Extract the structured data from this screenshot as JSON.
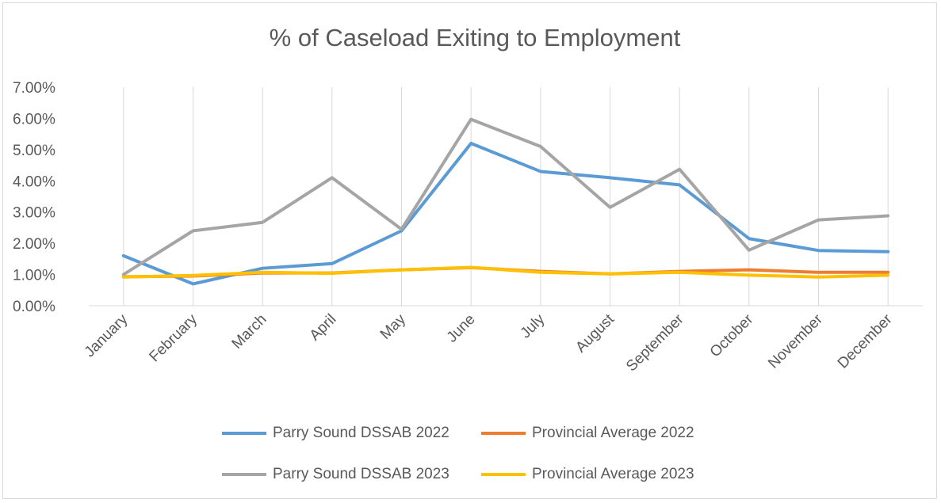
{
  "chart_data": {
    "type": "line",
    "title": "% of Caseload  Exiting to Employment",
    "xlabel": "",
    "ylabel": "",
    "ylim": [
      0,
      0.07
    ],
    "yticks": [
      "0.00%",
      "1.00%",
      "2.00%",
      "3.00%",
      "4.00%",
      "5.00%",
      "6.00%",
      "7.00%"
    ],
    "grid": "vertical",
    "legend_position": "bottom",
    "categories": [
      "January",
      "February",
      "March",
      "April",
      "May",
      "June",
      "July",
      "August",
      "September",
      "October",
      "November",
      "December"
    ],
    "series": [
      {
        "name": "Parry Sound DSSAB 2022",
        "color": "#5b9bd5",
        "values": [
          0.016,
          0.007,
          0.012,
          0.0135,
          0.024,
          0.052,
          0.043,
          0.041,
          0.0387,
          0.0215,
          0.0177,
          0.0173
        ]
      },
      {
        "name": "Provincial Average 2022",
        "color": "#ed7d31",
        "values": [
          0.0093,
          0.0095,
          0.0105,
          0.0105,
          0.0115,
          0.0122,
          0.011,
          0.0102,
          0.011,
          0.0115,
          0.0107,
          0.0107
        ]
      },
      {
        "name": "Parry Sound DSSAB 2023",
        "color": "#a5a5a5",
        "values": [
          0.01,
          0.024,
          0.0267,
          0.041,
          0.0245,
          0.0597,
          0.051,
          0.0315,
          0.0437,
          0.0178,
          0.0275,
          0.0288
        ]
      },
      {
        "name": "Provincial Average 2023",
        "color": "#ffc000",
        "values": [
          0.0092,
          0.0097,
          0.0107,
          0.0104,
          0.0115,
          0.0123,
          0.0107,
          0.0102,
          0.0107,
          0.0098,
          0.0092,
          0.0098
        ]
      }
    ]
  }
}
